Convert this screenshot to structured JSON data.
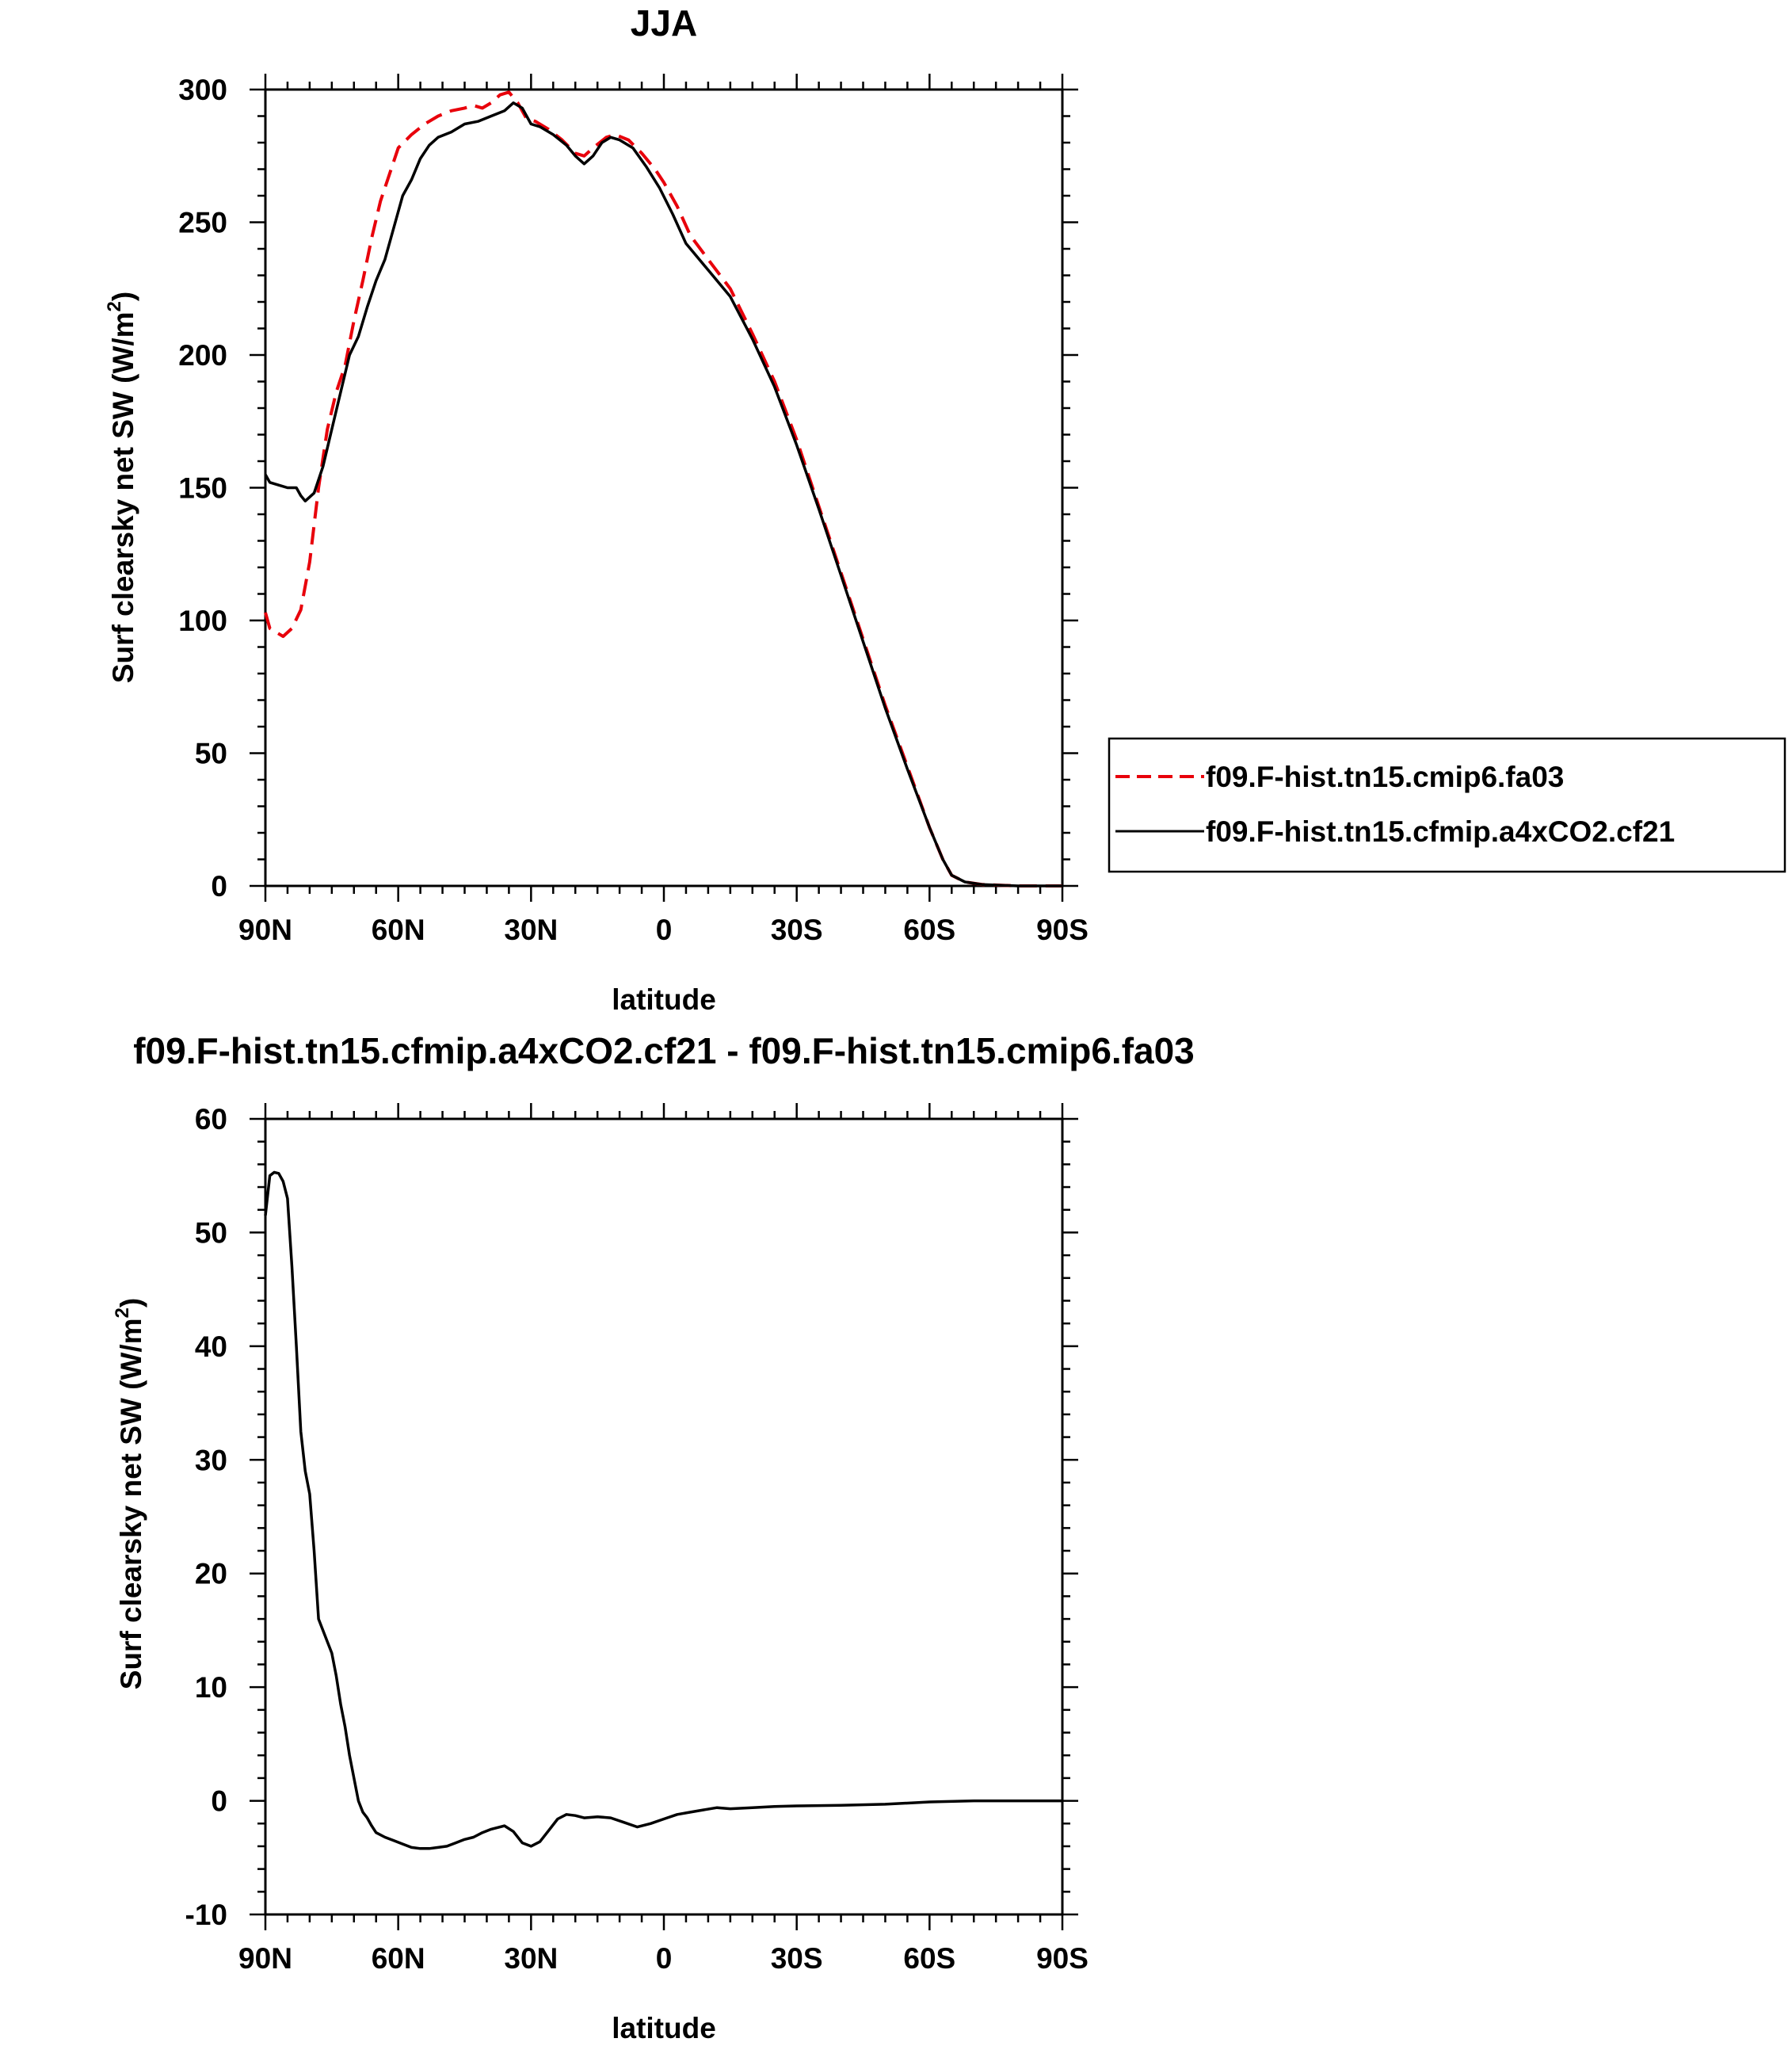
{
  "chart_data": [
    {
      "type": "line",
      "title": "JJA",
      "xlabel": "latitude",
      "ylabel": "Surf clearsky net SW (W/m²)",
      "ylabel_main": "Surf clearsky net SW (W/m",
      "ylabel_sup": "2",
      "ylabel_end": ")",
      "xlim": [
        90,
        -90
      ],
      "ylim": [
        0,
        300
      ],
      "xticks": [
        90,
        60,
        30,
        0,
        -30,
        -60,
        -90
      ],
      "xtick_labels": [
        "90N",
        "60N",
        "30N",
        "0",
        "30S",
        "60S",
        "90S"
      ],
      "yticks": [
        0,
        50,
        100,
        150,
        200,
        250,
        300
      ],
      "ytick_labels": [
        "0",
        "50",
        "100",
        "150",
        "200",
        "250",
        "300"
      ],
      "grid": false,
      "legend_position": "right",
      "series": [
        {
          "name": "f09.F-hist.tn15.cmip6.fa03",
          "color": "#e8000b",
          "style": "dashed",
          "points": [
            [
              90,
              103
            ],
            [
              89,
              97
            ],
            [
              87,
              95
            ],
            [
              86,
              94
            ],
            [
              84,
              97
            ],
            [
              82,
              104
            ],
            [
              80,
              122
            ],
            [
              78,
              150
            ],
            [
              76,
              172
            ],
            [
              74,
              186
            ],
            [
              72,
              196
            ],
            [
              70,
              213
            ],
            [
              68,
              228
            ],
            [
              66,
              244
            ],
            [
              64,
              258
            ],
            [
              62,
              268
            ],
            [
              60,
              278
            ],
            [
              57,
              283
            ],
            [
              54,
              287
            ],
            [
              51,
              290
            ],
            [
              48,
              292
            ],
            [
              45,
              293
            ],
            [
              43,
              294
            ],
            [
              41,
              293
            ],
            [
              39,
              295
            ],
            [
              37,
              298
            ],
            [
              35,
              299
            ],
            [
              33,
              295
            ],
            [
              31,
              289
            ],
            [
              29,
              288
            ],
            [
              26,
              285
            ],
            [
              23,
              281
            ],
            [
              20,
              276
            ],
            [
              18,
              275
            ],
            [
              16,
              278
            ],
            [
              13,
              282
            ],
            [
              11,
              283
            ],
            [
              8,
              281
            ],
            [
              5,
              276
            ],
            [
              2,
              270
            ],
            [
              0,
              265
            ],
            [
              -3,
              256
            ],
            [
              -6,
              245
            ],
            [
              -10,
              236
            ],
            [
              -15,
              225
            ],
            [
              -20,
              208
            ],
            [
              -25,
              190
            ],
            [
              -30,
              168
            ],
            [
              -35,
              143
            ],
            [
              -40,
              118
            ],
            [
              -45,
              93
            ],
            [
              -50,
              68
            ],
            [
              -55,
              45
            ],
            [
              -60,
              22
            ],
            [
              -63,
              10
            ],
            [
              -65,
              4
            ],
            [
              -68,
              1.5
            ],
            [
              -72,
              0.5
            ],
            [
              -80,
              0
            ],
            [
              -90,
              0
            ]
          ]
        },
        {
          "name": "f09.F-hist.tn15.cfmip.a4xCO2.cf21",
          "color": "#000000",
          "style": "solid",
          "points": [
            [
              90,
              155
            ],
            [
              89,
              152
            ],
            [
              87,
              151
            ],
            [
              85,
              150
            ],
            [
              83,
              150
            ],
            [
              82,
              147
            ],
            [
              81,
              145
            ],
            [
              79,
              148
            ],
            [
              77,
              158
            ],
            [
              75,
              172
            ],
            [
              73,
              186
            ],
            [
              71,
              200
            ],
            [
              69,
              207
            ],
            [
              67,
              218
            ],
            [
              65,
              228
            ],
            [
              63,
              236
            ],
            [
              61,
              248
            ],
            [
              59,
              260
            ],
            [
              57,
              266
            ],
            [
              55,
              274
            ],
            [
              53,
              279
            ],
            [
              51,
              282
            ],
            [
              48,
              284
            ],
            [
              45,
              287
            ],
            [
              42,
              288
            ],
            [
              39,
              290
            ],
            [
              36,
              292
            ],
            [
              34,
              295
            ],
            [
              32,
              293
            ],
            [
              30,
              287
            ],
            [
              28,
              286
            ],
            [
              25,
              283
            ],
            [
              22,
              279
            ],
            [
              20,
              275
            ],
            [
              18,
              272
            ],
            [
              16,
              275
            ],
            [
              14,
              280
            ],
            [
              12,
              282
            ],
            [
              10,
              281
            ],
            [
              7,
              278
            ],
            [
              4,
              271
            ],
            [
              1,
              263
            ],
            [
              -2,
              253
            ],
            [
              -5,
              242
            ],
            [
              -10,
              232
            ],
            [
              -15,
              222
            ],
            [
              -20,
              206
            ],
            [
              -25,
              188
            ],
            [
              -30,
              166
            ],
            [
              -35,
              142
            ],
            [
              -40,
              117
            ],
            [
              -45,
              92
            ],
            [
              -50,
              67
            ],
            [
              -55,
              44
            ],
            [
              -60,
              22
            ],
            [
              -63,
              10
            ],
            [
              -65,
              4
            ],
            [
              -68,
              1.5
            ],
            [
              -72,
              0.5
            ],
            [
              -80,
              0
            ],
            [
              -90,
              0
            ]
          ]
        }
      ]
    },
    {
      "type": "line",
      "title": "f09.F-hist.tn15.cfmip.a4xCO2.cf21 - f09.F-hist.tn15.cmip6.fa03",
      "xlabel": "latitude",
      "ylabel": "Surf clearsky net SW (W/m²)",
      "ylabel_main": "Surf clearsky net SW (W/m",
      "ylabel_sup": "2",
      "ylabel_end": ")",
      "xlim": [
        90,
        -90
      ],
      "ylim": [
        -10,
        60
      ],
      "xticks": [
        90,
        60,
        30,
        0,
        -30,
        -60,
        -90
      ],
      "xtick_labels": [
        "90N",
        "60N",
        "30N",
        "0",
        "30S",
        "60S",
        "90S"
      ],
      "yticks": [
        -10,
        0,
        10,
        20,
        30,
        40,
        50,
        60
      ],
      "ytick_labels": [
        "-10",
        "0",
        "10",
        "20",
        "30",
        "40",
        "50",
        "60"
      ],
      "grid": false,
      "series": [
        {
          "color": "#000000",
          "style": "solid",
          "points": [
            [
              90,
              51.5
            ],
            [
              89,
              55
            ],
            [
              88,
              55.3
            ],
            [
              87,
              55.2
            ],
            [
              86,
              54.5
            ],
            [
              85,
              53
            ],
            [
              84,
              47
            ],
            [
              83,
              40
            ],
            [
              82,
              32.5
            ],
            [
              81,
              29
            ],
            [
              80,
              27
            ],
            [
              79,
              22
            ],
            [
              78,
              16
            ],
            [
              76,
              14
            ],
            [
              75,
              13
            ],
            [
              74,
              11
            ],
            [
              73,
              8.5
            ],
            [
              72,
              6.5
            ],
            [
              71,
              4
            ],
            [
              70,
              2
            ],
            [
              69,
              0
            ],
            [
              68,
              -1
            ],
            [
              67,
              -1.5
            ],
            [
              66,
              -2.2
            ],
            [
              65,
              -2.8
            ],
            [
              63,
              -3.2
            ],
            [
              61,
              -3.5
            ],
            [
              59,
              -3.8
            ],
            [
              57,
              -4.1
            ],
            [
              55,
              -4.2
            ],
            [
              53,
              -4.2
            ],
            [
              51,
              -4.1
            ],
            [
              49,
              -4.0
            ],
            [
              47,
              -3.7
            ],
            [
              45,
              -3.4
            ],
            [
              43,
              -3.2
            ],
            [
              41,
              -2.8
            ],
            [
              39,
              -2.5
            ],
            [
              36,
              -2.2
            ],
            [
              34,
              -2.7
            ],
            [
              32,
              -3.7
            ],
            [
              30,
              -4.0
            ],
            [
              28,
              -3.6
            ],
            [
              26,
              -2.6
            ],
            [
              24,
              -1.6
            ],
            [
              22,
              -1.2
            ],
            [
              20,
              -1.3
            ],
            [
              18,
              -1.5
            ],
            [
              15,
              -1.4
            ],
            [
              12,
              -1.5
            ],
            [
              9,
              -1.9
            ],
            [
              6,
              -2.3
            ],
            [
              3,
              -2.0
            ],
            [
              0,
              -1.6
            ],
            [
              -3,
              -1.2
            ],
            [
              -6,
              -1.0
            ],
            [
              -9,
              -0.8
            ],
            [
              -12,
              -0.6
            ],
            [
              -15,
              -0.7
            ],
            [
              -20,
              -0.6
            ],
            [
              -25,
              -0.5
            ],
            [
              -30,
              -0.45
            ],
            [
              -40,
              -0.4
            ],
            [
              -50,
              -0.3
            ],
            [
              -60,
              -0.1
            ],
            [
              -70,
              0
            ],
            [
              -90,
              0
            ]
          ]
        }
      ]
    }
  ]
}
